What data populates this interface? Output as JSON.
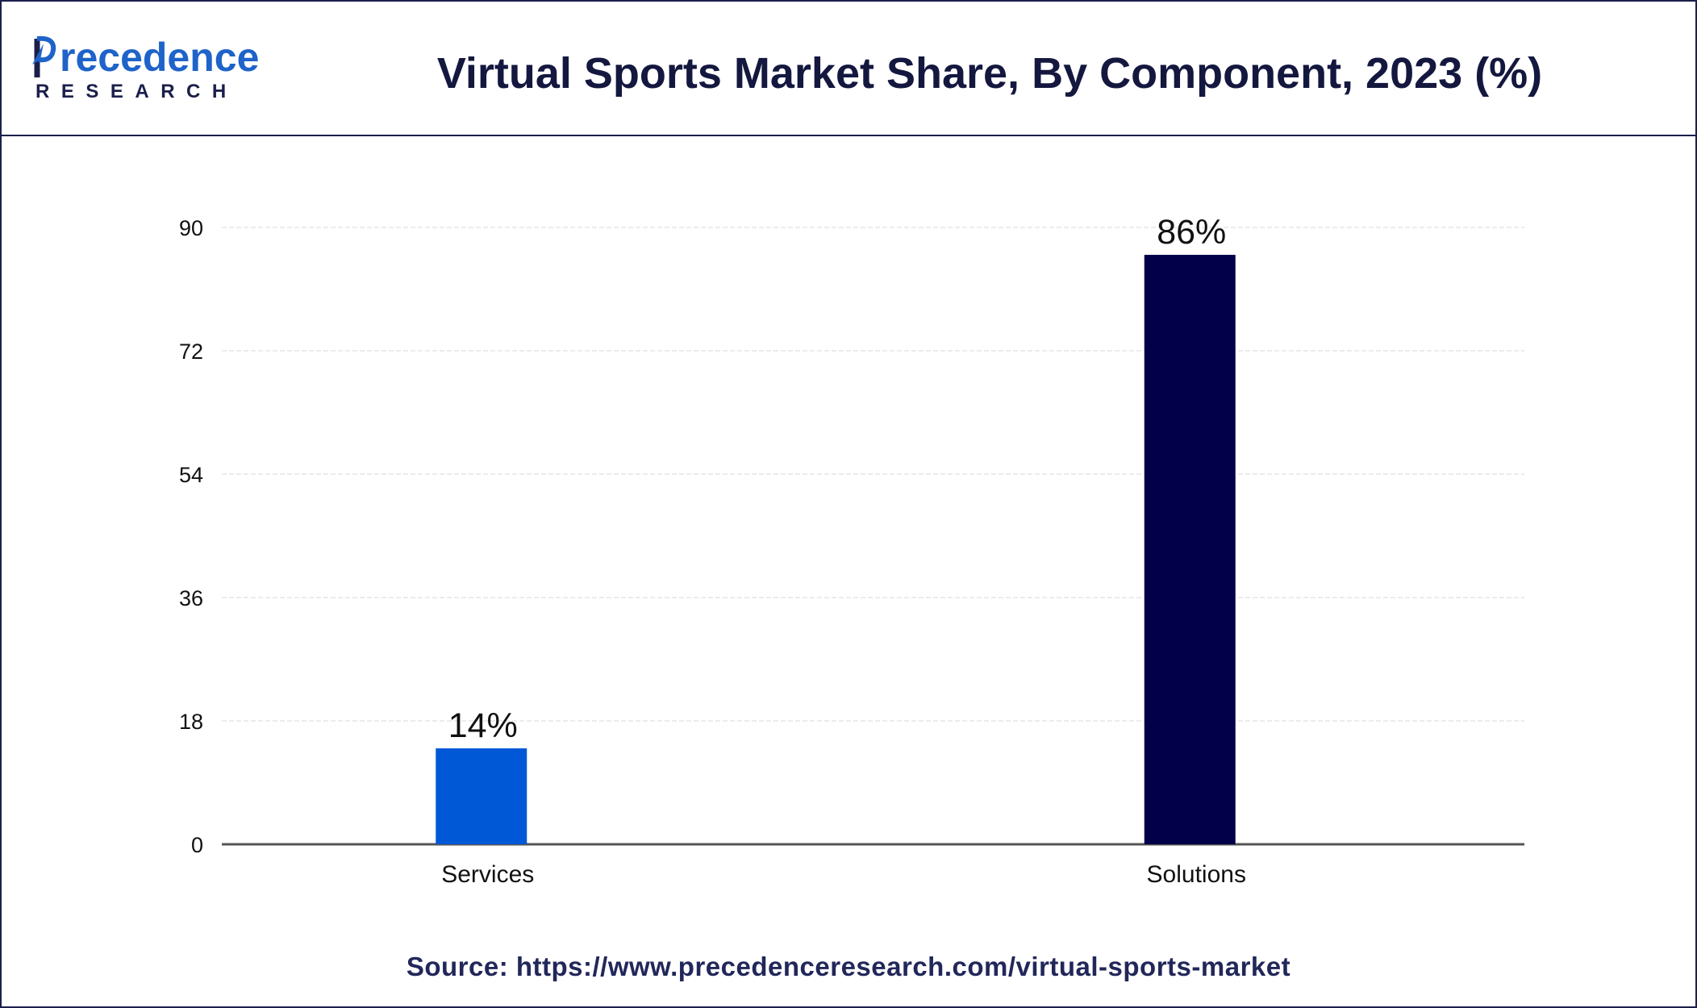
{
  "header": {
    "title": "Virtual Sports Market Share, By Component, 2023 (%)",
    "logo_main_rest": "recedence",
    "logo_sub": "RESEARCH"
  },
  "source": "Source: https://www.precedenceresearch.com/virtual-sports-market",
  "colors": {
    "services": "#0058d6",
    "solutions": "#03004a",
    "frame": "#1b1f4b"
  },
  "chart_data": {
    "type": "bar",
    "title": "Virtual Sports Market Share, By Component, 2023 (%)",
    "categories": [
      "Services",
      "Solutions"
    ],
    "values": [
      14,
      86
    ],
    "data_labels": [
      "14%",
      "86%"
    ],
    "ylim": [
      0,
      90
    ],
    "yticks": [
      0,
      18,
      36,
      54,
      72,
      90
    ],
    "xlabel": "",
    "ylabel": "",
    "grid": true,
    "legend": "none"
  }
}
